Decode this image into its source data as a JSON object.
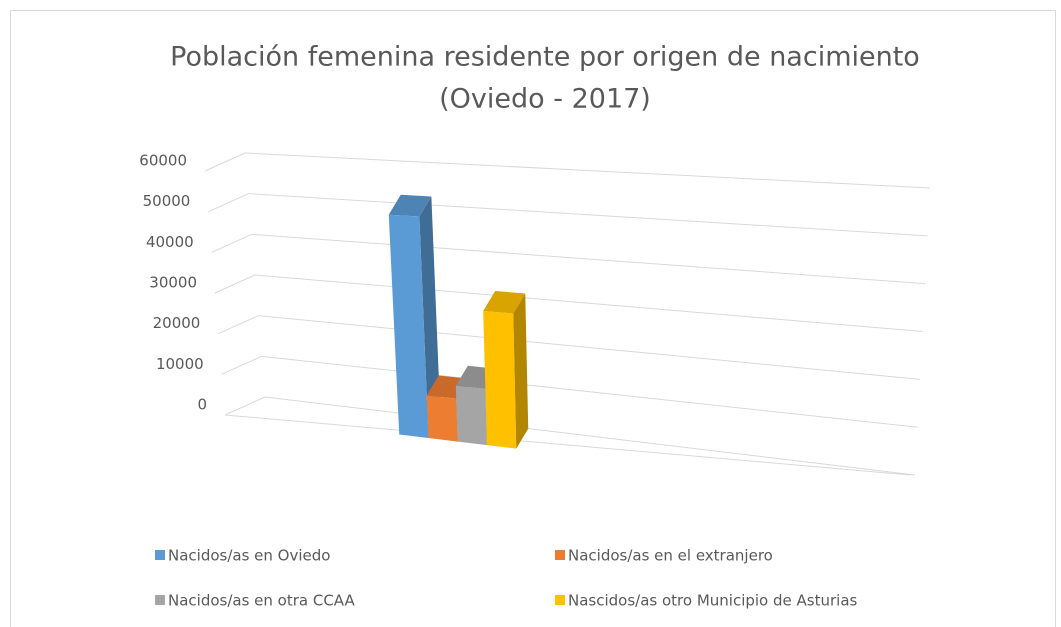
{
  "chart_data": {
    "type": "bar3d",
    "title": [
      "Población femenina residente por origen de nacimiento",
      "(Oviedo - 2017)"
    ],
    "categories": [
      null
    ],
    "series": [
      {
        "name": "Nacidos/as en Oviedo",
        "color": "#5b9bd5",
        "values": [
          52000
        ]
      },
      {
        "name": "Nacidos/as en el extranjero",
        "color": "#ed7d31",
        "values": [
          10000
        ]
      },
      {
        "name": "Nacidos/as en otra CCAA",
        "color": "#a5a5a5",
        "values": [
          13000
        ]
      },
      {
        "name": "Nascidos/as otro Municipio de Asturias",
        "color": "#ffc000",
        "values": [
          31000
        ]
      }
    ],
    "ylim": [
      0,
      60000
    ],
    "yticks": [
      0,
      10000,
      20000,
      30000,
      40000,
      50000,
      60000
    ],
    "grid": true,
    "legend": "bottom"
  }
}
